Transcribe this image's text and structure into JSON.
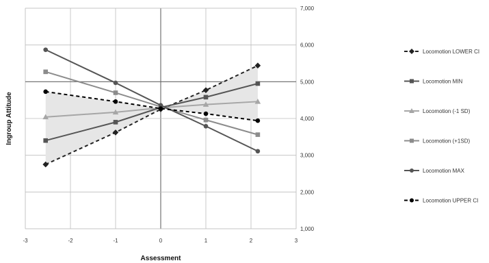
{
  "chart_data": {
    "type": "line",
    "xlabel": "Assessment",
    "ylabel": "Ingroup Attitude",
    "xlim": [
      -3,
      3
    ],
    "ylim": [
      1000,
      7000
    ],
    "x_ticks": [
      "-3",
      "-2",
      "-1",
      "0",
      "1",
      "2",
      "3"
    ],
    "y_ticks": [
      "1,000",
      "2,000",
      "3,000",
      "4,000",
      "5,000",
      "6,000",
      "7,000"
    ],
    "grid": "major gridlines on both axes",
    "legend_position": "right",
    "x": [
      -2.55,
      -1,
      0,
      1,
      2.15
    ],
    "series": [
      {
        "name": "Locomotion LOWER CI",
        "values": [
          2750,
          3620,
          4250,
          4770,
          5440
        ],
        "color": "#222222",
        "style": "dashed",
        "marker": "diamond"
      },
      {
        "name": "Locomotion MIN",
        "values": [
          3400,
          3900,
          4300,
          4580,
          4950
        ],
        "color": "#555555",
        "style": "solid",
        "marker": "square"
      },
      {
        "name": "Locomotion (-1 SD)",
        "values": [
          4040,
          4170,
          4290,
          4380,
          4460
        ],
        "color": "#a6a6a6",
        "style": "solid",
        "marker": "triangle"
      },
      {
        "name": "Locomotion (+1SD)",
        "values": [
          5270,
          4700,
          4320,
          3960,
          3560
        ],
        "color": "#8c8c8c",
        "style": "solid",
        "marker": "square"
      },
      {
        "name": "Locomotion MAX",
        "values": [
          5870,
          4970,
          4360,
          3790,
          3110
        ],
        "color": "#555555",
        "style": "solid",
        "marker": "circle"
      },
      {
        "name": "Locomotion UPPER CI",
        "values": [
          4730,
          4460,
          4270,
          4130,
          3940
        ],
        "color": "#000000",
        "style": "dashed",
        "marker": "circle"
      }
    ],
    "band": {
      "between": [
        "Locomotion LOWER CI",
        "Locomotion UPPER CI"
      ],
      "color": "#e6e6e6"
    }
  }
}
